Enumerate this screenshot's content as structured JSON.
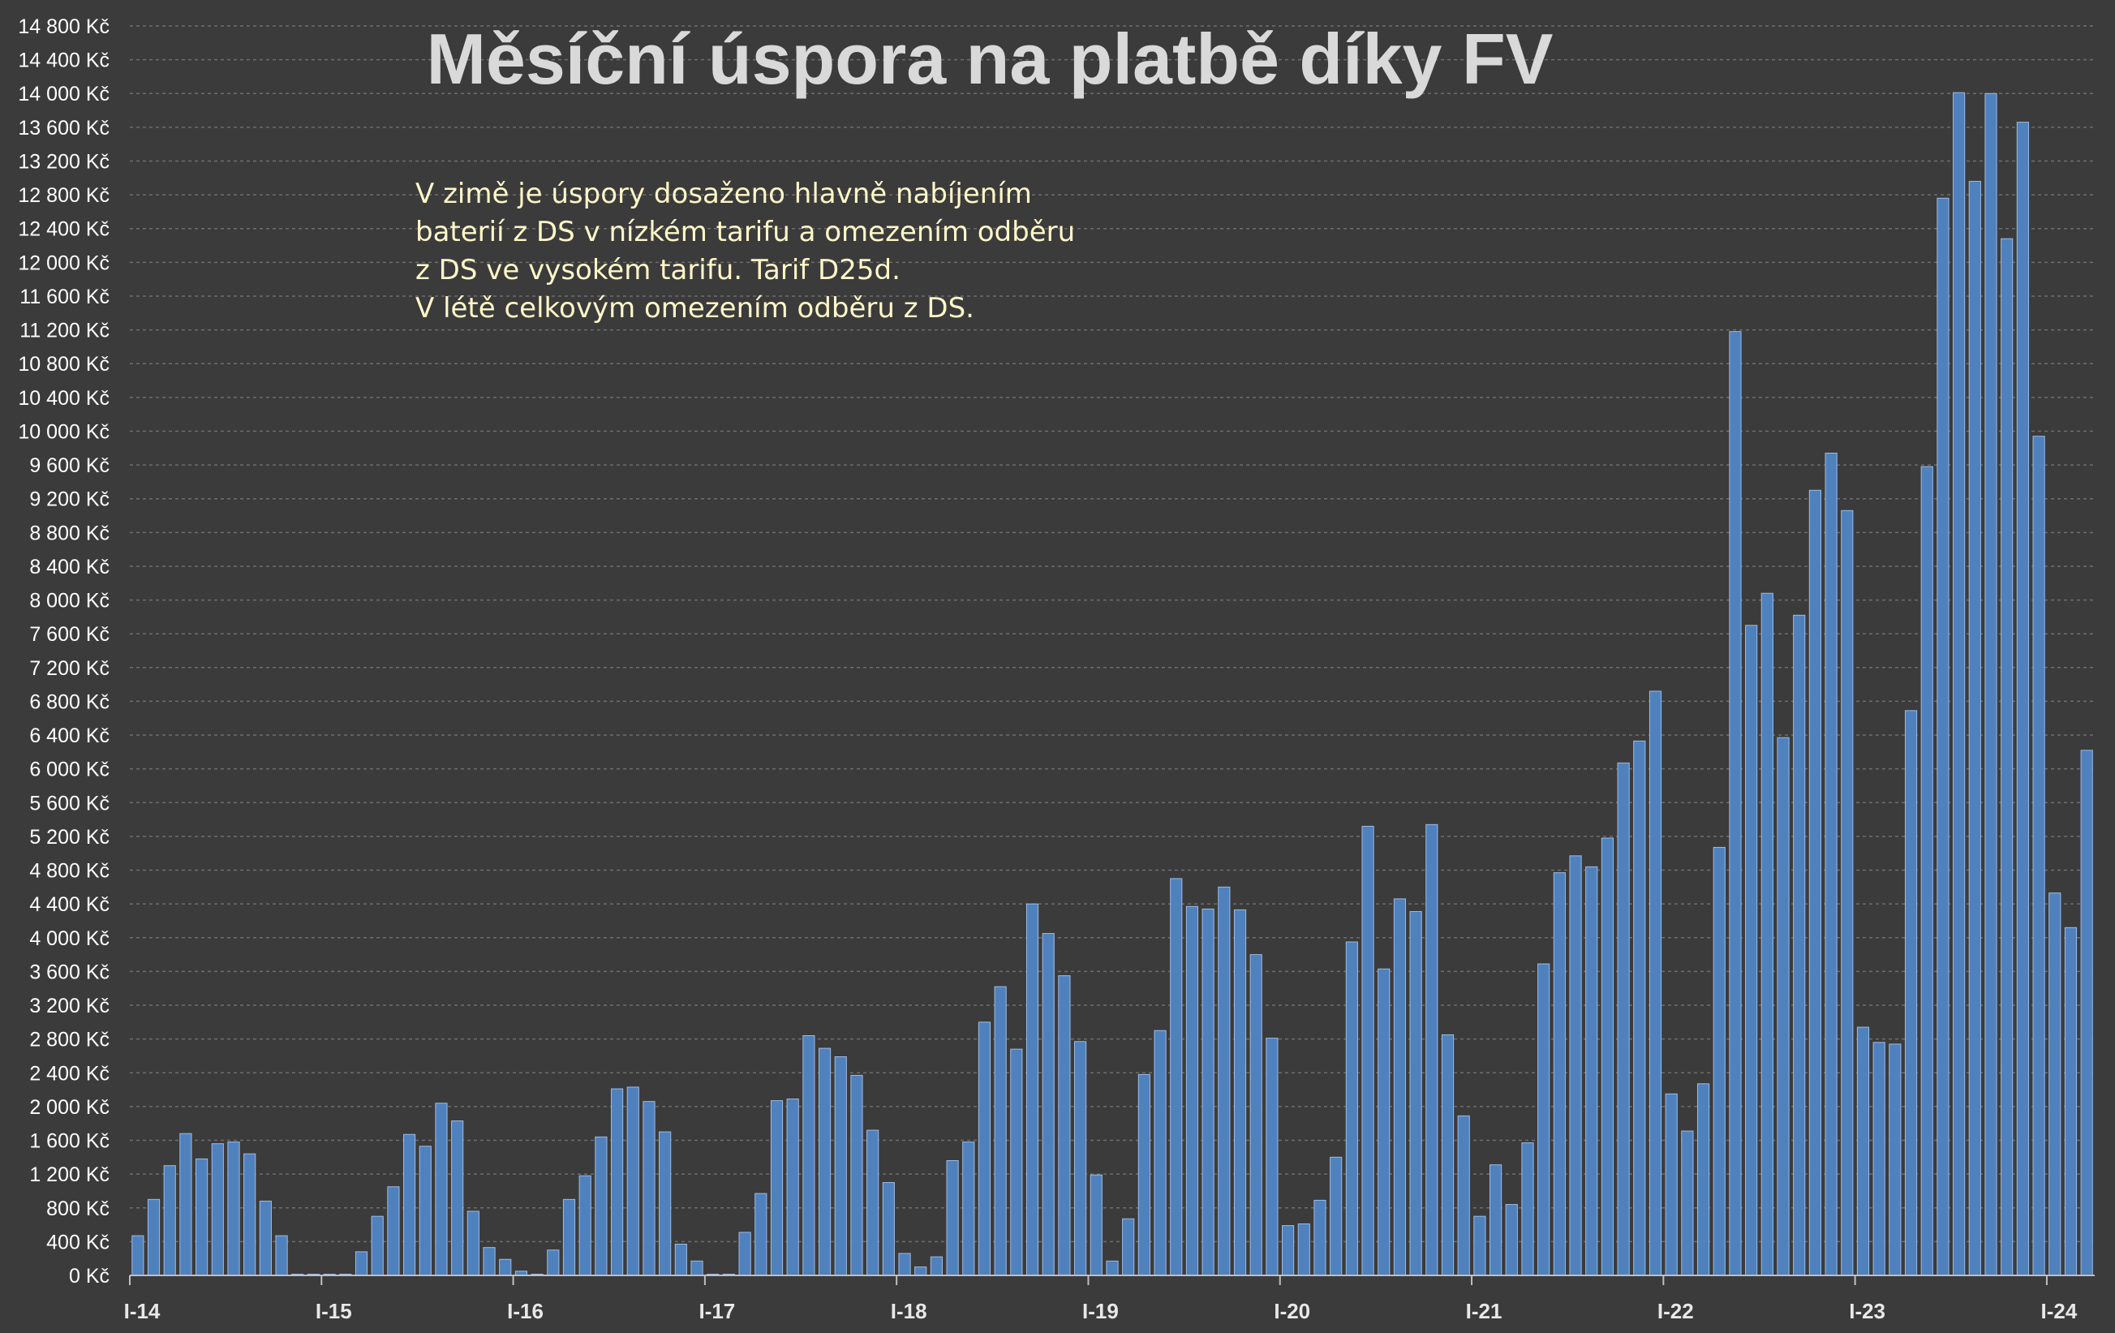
{
  "chart_data": {
    "type": "bar",
    "title": "Měsíční úspora na platbě díky FV",
    "annotation": [
      "V zimě je úspory dosaženo hlavně nabíjením",
      "baterií z DS v nízkém tarifu a omezením odběru",
      "z DS ve vysokém tarifu. Tarif D25d.",
      "V létě celkovým omezením odběru z DS."
    ],
    "y_tick_labels": [
      "0 Kč",
      "400 Kč",
      "800 Kč",
      "1 200 Kč",
      "1 600 Kč",
      "2 000 Kč",
      "2 400 Kč",
      "2 800 Kč",
      "3 200 Kč",
      "3 600 Kč",
      "4 000 Kč",
      "4 400 Kč",
      "4 800 Kč",
      "5 200 Kč",
      "5 600 Kč",
      "6 000 Kč",
      "6 400 Kč",
      "6 800 Kč",
      "7 200 Kč",
      "7 600 Kč",
      "8 000 Kč",
      "8 400 Kč",
      "8 800 Kč",
      "9 200 Kč",
      "9 600 Kč",
      "10 000 Kč",
      "10 400 Kč",
      "10 800 Kč",
      "11 200 Kč",
      "11 600 Kč",
      "12 000 Kč",
      "12 400 Kč",
      "12 800 Kč",
      "13 200 Kč",
      "13 600 Kč",
      "14 000 Kč",
      "14 400 Kč",
      "14 800 Kč"
    ],
    "x_tick_labels": [
      "I-14",
      "I-15",
      "I-16",
      "I-17",
      "I-18",
      "I-19",
      "I-20",
      "I-21",
      "I-22",
      "I-23",
      "I-24"
    ],
    "ylim": [
      0,
      14800
    ],
    "y_tick_step": 400,
    "grid": "horizontal dashed",
    "bar_color": "#4f81bd",
    "values": [
      470,
      900,
      1300,
      1680,
      1380,
      1560,
      1580,
      1440,
      880,
      470,
      0,
      0,
      0,
      0,
      280,
      700,
      1050,
      1670,
      1530,
      2040,
      1830,
      760,
      330,
      190,
      50,
      0,
      300,
      900,
      1180,
      1640,
      2210,
      2230,
      2060,
      1700,
      370,
      170,
      0,
      0,
      510,
      970,
      2070,
      2090,
      2840,
      2690,
      2590,
      2370,
      1720,
      1100,
      260,
      100,
      220,
      1360,
      1580,
      3000,
      3420,
      2680,
      4400,
      4050,
      3550,
      2770,
      1190,
      170,
      670,
      2380,
      2900,
      4700,
      4370,
      4340,
      4600,
      4330,
      3800,
      2810,
      590,
      610,
      890,
      1400,
      3950,
      5320,
      3630,
      4460,
      4310,
      5340,
      2850,
      1890,
      700,
      1310,
      840,
      1570,
      3690,
      4770,
      4970,
      4840,
      5180,
      6070,
      6330,
      6920,
      2150,
      1710,
      2270,
      5070,
      11180,
      7700,
      8080,
      6370,
      7820,
      9300,
      9740,
      9060,
      2940,
      2760,
      2740,
      6690,
      9580,
      12760,
      14010,
      12960,
      14000,
      12280,
      13660,
      9940,
      4530,
      4120,
      6220
    ]
  }
}
